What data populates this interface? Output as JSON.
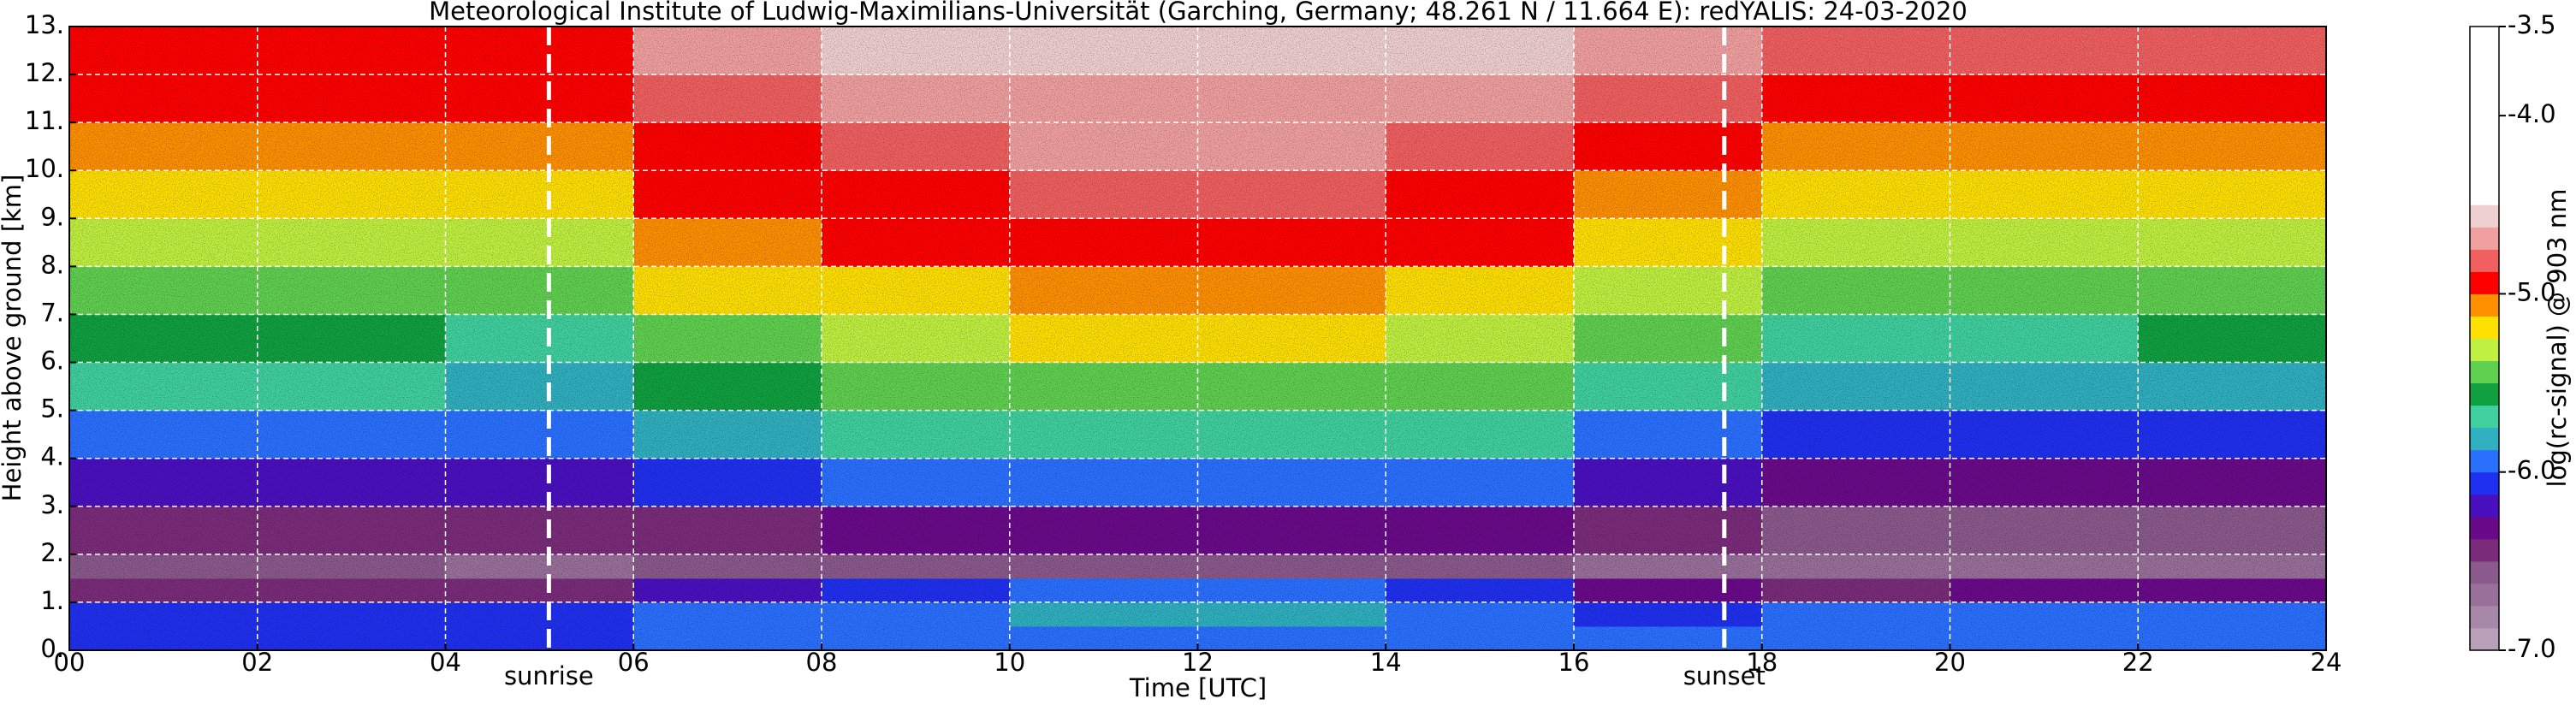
{
  "chart_data": {
    "type": "heatmap",
    "title": "Meteorological Institute of Ludwig-Maximilians-Universität (Garching, Germany; 48.261 N / 11.664 E):     redYALIS: 24-03-2020",
    "x_label": "Time [UTC]",
    "y_label": "Height above ground [km]",
    "colorbar_label": "log(rc-signal) @ 903 nm",
    "xlim": [
      0,
      24
    ],
    "ylim": [
      0,
      13
    ],
    "xticks": [
      {
        "value": 0,
        "label": "00"
      },
      {
        "value": 2,
        "label": "02"
      },
      {
        "value": 4,
        "label": "04"
      },
      {
        "value": 6,
        "label": "06"
      },
      {
        "value": 8,
        "label": "08"
      },
      10,
      12,
      14,
      16,
      18,
      20,
      22,
      24
    ],
    "yticks": [
      {
        "value": 0,
        "label": "0."
      },
      {
        "value": 1,
        "label": "1."
      },
      {
        "value": 2,
        "label": "2."
      },
      {
        "value": 3,
        "label": "3."
      },
      {
        "value": 4,
        "label": "4."
      },
      {
        "value": 5,
        "label": "5."
      },
      {
        "value": 6,
        "label": "6."
      },
      {
        "value": 7,
        "label": "7."
      },
      {
        "value": 8,
        "label": "8."
      },
      {
        "value": 9,
        "label": "9."
      },
      {
        "value": 10,
        "label": "10."
      },
      {
        "value": 11,
        "label": "11."
      },
      {
        "value": 12,
        "label": "12."
      },
      {
        "value": 13,
        "label": "13."
      }
    ],
    "grid": true,
    "clim": [
      -7,
      -3.5
    ],
    "cticks": [
      -3.5,
      {
        "value": -4,
        "label": "-4.0"
      },
      {
        "value": -5,
        "label": "-5.0"
      },
      {
        "value": -6,
        "label": "-6.0"
      },
      {
        "value": -7,
        "label": "-7.0"
      }
    ],
    "colors": [
      "#b8a0b8",
      "#a888a8",
      "#98709a",
      "#8a5a8c",
      "#7a2c7a",
      "#6a0a8a",
      "#4a10c0",
      "#2030f0",
      "#2a70ff",
      "#30b0c0",
      "#40d0a0",
      "#10a040",
      "#60d050",
      "#c0f040",
      "#ffe000",
      "#ff9000",
      "#ff0000",
      "#f06060",
      "#f0a0a0",
      "#f0d0d0",
      "#ffffff",
      "#ffffff",
      "#ffffff",
      "#ffffff",
      "#ffffff",
      "#ffffff",
      "#ffffff",
      "#ffffff"
    ],
    "annotations": [
      {
        "x": 5.1,
        "label": "sunrise"
      },
      {
        "x": 17.6,
        "label": "sunset"
      }
    ],
    "x_edges": [
      0,
      2,
      4,
      6,
      8,
      10,
      12,
      14,
      16,
      18,
      20,
      22,
      24
    ],
    "y_edges": [
      0,
      0.5,
      1,
      1.5,
      2,
      3,
      4,
      5,
      6,
      7,
      8,
      9,
      10,
      11,
      12,
      13
    ],
    "z": [
      [
        -6.1,
        -6.1,
        -6.05,
        -6.0,
        -5.95,
        -5.9,
        -5.9,
        -5.95,
        -6.0,
        -6.0,
        -6.0,
        -6.0
      ],
      [
        -6.05,
        -6.1,
        -6.1,
        -6.0,
        -5.95,
        -5.85,
        -5.85,
        -5.95,
        -6.05,
        -6.0,
        -6.0,
        -6.0
      ],
      [
        -6.45,
        -6.45,
        -6.5,
        -6.15,
        -6.1,
        -6.0,
        -6.0,
        -6.05,
        -6.3,
        -6.4,
        -6.3,
        -6.3
      ],
      [
        -6.6,
        -6.6,
        -6.65,
        -6.6,
        -6.6,
        -6.55,
        -6.55,
        -6.6,
        -6.65,
        -6.65,
        -6.65,
        -6.65
      ],
      [
        -6.5,
        -6.5,
        -6.5,
        -6.4,
        -6.35,
        -6.3,
        -6.3,
        -6.35,
        -6.45,
        -6.55,
        -6.55,
        -6.55
      ],
      [
        -6.2,
        -6.25,
        -6.25,
        -6.1,
        -6.0,
        -5.95,
        -5.95,
        -6.0,
        -6.2,
        -6.35,
        -6.35,
        -6.35
      ],
      [
        -5.9,
        -5.95,
        -6.0,
        -5.8,
        -5.7,
        -5.65,
        -5.65,
        -5.7,
        -5.9,
        -6.1,
        -6.1,
        -6.1
      ],
      [
        -5.7,
        -5.75,
        -5.8,
        -5.55,
        -5.45,
        -5.4,
        -5.4,
        -5.45,
        -5.65,
        -5.85,
        -5.85,
        -5.85
      ],
      [
        -5.6,
        -5.6,
        -5.65,
        -5.4,
        -5.3,
        -5.25,
        -5.25,
        -5.3,
        -5.45,
        -5.65,
        -5.65,
        -5.6
      ],
      [
        -5.5,
        -5.5,
        -5.5,
        -5.25,
        -5.15,
        -5.1,
        -5.1,
        -5.15,
        -5.3,
        -5.45,
        -5.45,
        -5.45
      ],
      [
        -5.35,
        -5.35,
        -5.35,
        -5.1,
        -5.0,
        -4.95,
        -4.95,
        -5.0,
        -5.15,
        -5.3,
        -5.3,
        -5.3
      ],
      [
        -5.2,
        -5.2,
        -5.2,
        -5.0,
        -4.9,
        -4.85,
        -4.85,
        -4.9,
        -5.05,
        -5.15,
        -5.15,
        -5.15
      ],
      [
        -5.05,
        -5.05,
        -5.05,
        -4.9,
        -4.8,
        -4.75,
        -4.75,
        -4.8,
        -4.95,
        -5.05,
        -5.05,
        -5.05
      ],
      [
        -4.95,
        -4.95,
        -4.95,
        -4.8,
        -4.7,
        -4.65,
        -4.65,
        -4.7,
        -4.85,
        -4.95,
        -4.95,
        -4.95
      ],
      [
        -4.9,
        -4.9,
        -4.9,
        -4.7,
        -4.6,
        -4.55,
        -4.55,
        -4.6,
        -4.75,
        -4.85,
        -4.85,
        -4.85
      ]
    ]
  }
}
